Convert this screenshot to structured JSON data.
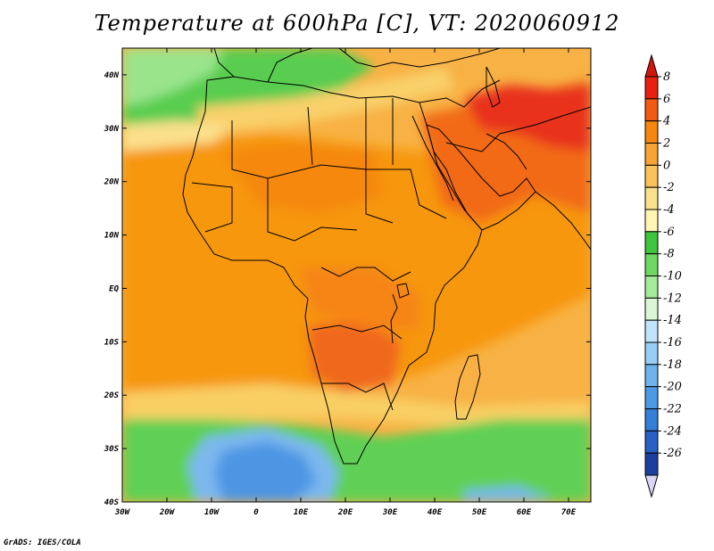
{
  "title": "Temperature at 600hPa [C], VT: 2020060912",
  "footer": "GrADS: IGES/COLA",
  "chart_data": {
    "type": "heatmap",
    "title": "Temperature at 600hPa [C], VT: 2020060912",
    "variable": "Temperature",
    "level": "600hPa",
    "units": "C",
    "valid_time": "2020060912",
    "x_ticks": [
      "30W",
      "20W",
      "10W",
      "0",
      "10E",
      "20E",
      "30E",
      "40E",
      "50E",
      "60E",
      "70E"
    ],
    "y_ticks": [
      "40S",
      "30S",
      "20S",
      "10S",
      "EQ",
      "10N",
      "20N",
      "30N",
      "40N"
    ],
    "xlim": [
      -30,
      75
    ],
    "ylim": [
      -40,
      45
    ],
    "colorbar": {
      "labels": [
        "8",
        "6",
        "4",
        "2",
        "0",
        "-2",
        "-4",
        "-6",
        "-8",
        "-10",
        "-12",
        "-14",
        "-16",
        "-18",
        "-20",
        "-22",
        "-24",
        "-26"
      ],
      "colors": [
        "#e8200f",
        "#f25a12",
        "#f7860f",
        "#f6a436",
        "#f8c35a",
        "#fbe08b",
        "#fff6b3",
        "#3ec43e",
        "#6fd862",
        "#a5ea98",
        "#d9f7d4",
        "#bfe4fb",
        "#98cdf4",
        "#6fb3ec",
        "#4d99e4",
        "#347ed8",
        "#2860c4",
        "#1b3f9e"
      ],
      "top_arrow_color": "#d3160c",
      "bottom_arrow_color": "#d8d6f4",
      "bottom_segment_color": "#0d1b6e"
    }
  }
}
